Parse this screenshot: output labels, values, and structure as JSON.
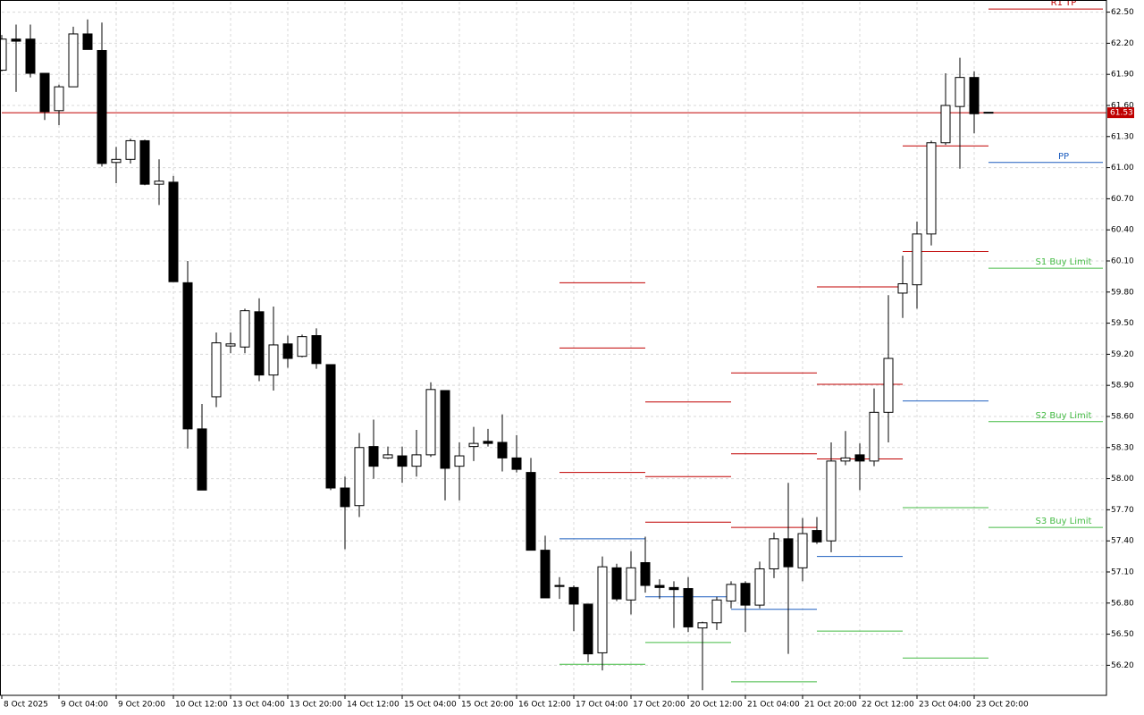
{
  "chart_data": {
    "type": "candlestick",
    "categories": [
      "8 Oct 2025",
      null,
      null,
      null,
      "9 Oct 04:00",
      null,
      null,
      null,
      "9 Oct 20:00",
      null,
      null,
      null,
      "10 Oct 12:00",
      null,
      null,
      null,
      "13 Oct 04:00",
      null,
      null,
      null,
      "13 Oct 20:00",
      null,
      null,
      null,
      "14 Oct 12:00",
      null,
      null,
      null,
      "15 Oct 04:00",
      null,
      null,
      null,
      "15 Oct 20:00",
      null,
      null,
      null,
      "16 Oct 12:00",
      null,
      null,
      null,
      "17 Oct 04:00",
      null,
      null,
      null,
      "17 Oct 20:00",
      null,
      null,
      null,
      "20 Oct 12:00",
      null,
      null,
      null,
      "21 Oct 04:00",
      null,
      null,
      null,
      "21 Oct 20:00",
      null,
      null,
      null,
      "22 Oct 12:00",
      null,
      null,
      null,
      "23 Oct 04:00",
      null,
      null,
      null,
      "23 Oct 20:00",
      null
    ],
    "ohlc": [
      [
        61.94,
        62.28,
        61.93,
        62.24
      ],
      [
        62.24,
        62.38,
        61.73,
        62.22
      ],
      [
        62.24,
        62.38,
        61.87,
        61.91
      ],
      [
        61.91,
        61.91,
        61.46,
        61.54
      ],
      [
        61.55,
        61.8,
        61.41,
        61.78
      ],
      [
        61.78,
        62.36,
        61.78,
        62.29
      ],
      [
        62.29,
        62.43,
        62.14,
        62.14
      ],
      [
        62.13,
        62.4,
        61.01,
        61.04
      ],
      [
        61.05,
        61.2,
        60.85,
        61.08
      ],
      [
        61.08,
        61.28,
        61.04,
        61.26
      ],
      [
        61.26,
        61.27,
        60.83,
        60.84
      ],
      [
        60.84,
        61.08,
        60.64,
        60.87
      ],
      [
        60.86,
        60.92,
        59.9,
        59.9
      ],
      [
        59.89,
        60.1,
        58.29,
        58.48
      ],
      [
        58.48,
        58.72,
        57.89,
        57.89
      ],
      [
        58.79,
        59.41,
        58.69,
        59.31
      ],
      [
        59.28,
        59.41,
        59.21,
        59.3
      ],
      [
        59.27,
        59.64,
        59.21,
        59.62
      ],
      [
        59.61,
        59.74,
        58.94,
        59.0
      ],
      [
        59.0,
        59.66,
        58.85,
        59.29
      ],
      [
        59.3,
        59.38,
        59.07,
        59.16
      ],
      [
        59.18,
        59.39,
        59.17,
        59.37
      ],
      [
        59.38,
        59.45,
        59.06,
        59.11
      ],
      [
        59.1,
        59.1,
        57.89,
        57.91
      ],
      [
        57.91,
        58.02,
        57.32,
        57.73
      ],
      [
        57.74,
        58.44,
        57.63,
        58.3
      ],
      [
        58.31,
        58.57,
        58.0,
        58.12
      ],
      [
        58.2,
        58.31,
        58.19,
        58.23
      ],
      [
        58.22,
        58.31,
        57.96,
        58.12
      ],
      [
        58.12,
        58.47,
        58.02,
        58.23
      ],
      [
        58.23,
        58.93,
        58.21,
        58.86
      ],
      [
        58.85,
        58.85,
        57.79,
        58.1
      ],
      [
        58.12,
        58.35,
        57.79,
        58.22
      ],
      [
        58.31,
        58.5,
        58.17,
        58.34
      ],
      [
        58.36,
        58.48,
        58.31,
        58.34
      ],
      [
        58.35,
        58.62,
        58.07,
        58.2
      ],
      [
        58.2,
        58.42,
        58.06,
        58.09
      ],
      [
        58.06,
        58.2,
        57.31,
        57.31
      ],
      [
        57.31,
        57.45,
        56.85,
        56.85
      ],
      [
        56.97,
        57.05,
        56.84,
        56.96
      ],
      [
        56.95,
        56.97,
        56.53,
        56.79
      ],
      [
        56.79,
        56.79,
        56.23,
        56.31
      ],
      [
        56.32,
        57.25,
        56.15,
        57.15
      ],
      [
        57.14,
        57.18,
        56.82,
        56.84
      ],
      [
        56.83,
        57.3,
        56.69,
        57.14
      ],
      [
        57.19,
        57.44,
        56.9,
        56.97
      ],
      [
        56.97,
        57.03,
        56.84,
        56.95
      ],
      [
        56.95,
        57.01,
        56.56,
        56.93
      ],
      [
        56.94,
        57.05,
        56.52,
        56.57
      ],
      [
        56.56,
        56.62,
        55.96,
        56.61
      ],
      [
        56.61,
        56.86,
        56.54,
        56.83
      ],
      [
        56.82,
        57.01,
        56.75,
        56.98
      ],
      [
        56.99,
        57.01,
        56.52,
        56.78
      ],
      [
        56.78,
        57.2,
        56.75,
        57.13
      ],
      [
        57.13,
        57.48,
        57.04,
        57.42
      ],
      [
        57.42,
        57.96,
        56.31,
        57.15
      ],
      [
        57.14,
        57.62,
        57.01,
        57.47
      ],
      [
        57.5,
        57.63,
        57.37,
        57.39
      ],
      [
        57.4,
        58.35,
        57.29,
        58.17
      ],
      [
        58.17,
        58.46,
        58.13,
        58.2
      ],
      [
        58.23,
        58.34,
        57.89,
        58.17
      ],
      [
        58.17,
        58.87,
        58.12,
        58.64
      ],
      [
        58.64,
        59.77,
        58.35,
        59.16
      ],
      [
        59.79,
        60.15,
        59.55,
        59.88
      ],
      [
        59.87,
        60.48,
        59.64,
        60.36
      ],
      [
        60.36,
        61.26,
        60.25,
        61.24
      ],
      [
        61.24,
        61.91,
        61.22,
        61.6
      ],
      [
        61.59,
        62.06,
        60.99,
        61.87
      ],
      [
        61.87,
        61.93,
        61.33,
        61.52
      ],
      [
        61.53,
        61.53,
        61.53,
        61.53
      ]
    ],
    "up_color": "#ffffff",
    "down_color": "#000000",
    "current_price": 61.53,
    "current_price_color": "#c00000",
    "levels": [
      [
        {
          "value": 59.89,
          "color": "#c00000"
        },
        {
          "value": 59.26,
          "color": "#c00000"
        },
        {
          "value": 58.06,
          "color": "#c00000"
        },
        {
          "value": 57.42,
          "color": "#1f5fbf"
        },
        {
          "value": 56.21,
          "color": "#44bb44"
        }
      ],
      [
        {
          "value": 58.74,
          "color": "#c00000"
        },
        {
          "value": 58.02,
          "color": "#c00000"
        },
        {
          "value": 57.58,
          "color": "#c00000"
        },
        {
          "value": 56.86,
          "color": "#1f5fbf"
        },
        {
          "value": 56.42,
          "color": "#44bb44"
        }
      ],
      [
        {
          "value": 59.02,
          "color": "#c00000"
        },
        {
          "value": 58.24,
          "color": "#c00000"
        },
        {
          "value": 57.53,
          "color": "#c00000"
        },
        {
          "value": 56.74,
          "color": "#1f5fbf"
        },
        {
          "value": 56.04,
          "color": "#44bb44"
        }
      ],
      [
        {
          "value": 59.85,
          "color": "#c00000"
        },
        {
          "value": 58.91,
          "color": "#c00000"
        },
        {
          "value": 58.19,
          "color": "#c00000"
        },
        {
          "value": 57.25,
          "color": "#1f5fbf"
        },
        {
          "value": 56.53,
          "color": "#44bb44"
        }
      ],
      [
        {
          "value": 61.21,
          "color": "#c00000"
        },
        {
          "value": 60.19,
          "color": "#c00000"
        },
        {
          "value": 58.75,
          "color": "#1f5fbf"
        },
        {
          "value": 57.72,
          "color": "#44bb44"
        },
        {
          "value": 56.27,
          "color": "#44bb44"
        }
      ],
      [
        {
          "value": 62.53,
          "color": "#c00000",
          "label": "R1 TP"
        },
        {
          "value": 61.05,
          "color": "#1f5fbf",
          "label": "PP"
        },
        {
          "value": 60.03,
          "color": "#44bb44",
          "label": "S1 Buy Limit"
        },
        {
          "value": 58.55,
          "color": "#44bb44",
          "label": "S2 Buy Limit"
        },
        {
          "value": 57.53,
          "color": "#44bb44",
          "label": "S3 Buy Limit"
        }
      ]
    ],
    "ylim": [
      55.91,
      62.6
    ],
    "yticks": [
      {
        "value": 62.5,
        "label": "62.50"
      },
      {
        "value": 62.2,
        "label": "62.20"
      },
      {
        "value": 61.9,
        "label": "61.90"
      },
      {
        "value": 61.6,
        "label": "61.60"
      },
      {
        "value": 61.3,
        "label": "61.30"
      },
      {
        "value": 61.0,
        "label": "61.00"
      },
      {
        "value": 60.7,
        "label": "60.70"
      },
      {
        "value": 60.4,
        "label": "60.40"
      },
      {
        "value": 60.1,
        "label": "60.10"
      },
      {
        "value": 59.8,
        "label": "59.80"
      },
      {
        "value": 59.5,
        "label": "59.50"
      },
      {
        "value": 59.2,
        "label": "59.20"
      },
      {
        "value": 58.9,
        "label": "58.90"
      },
      {
        "value": 58.6,
        "label": "58.60"
      },
      {
        "value": 58.3,
        "label": "58.30"
      },
      {
        "value": 58.0,
        "label": "58.00"
      },
      {
        "value": 57.7,
        "label": "57.70"
      },
      {
        "value": 57.4,
        "label": "57.40"
      },
      {
        "value": 57.1,
        "label": "57.10"
      },
      {
        "value": 56.8,
        "label": "56.80"
      },
      {
        "value": 56.5,
        "label": "56.50"
      },
      {
        "value": 56.2,
        "label": "56.20"
      }
    ],
    "grid": true
  }
}
